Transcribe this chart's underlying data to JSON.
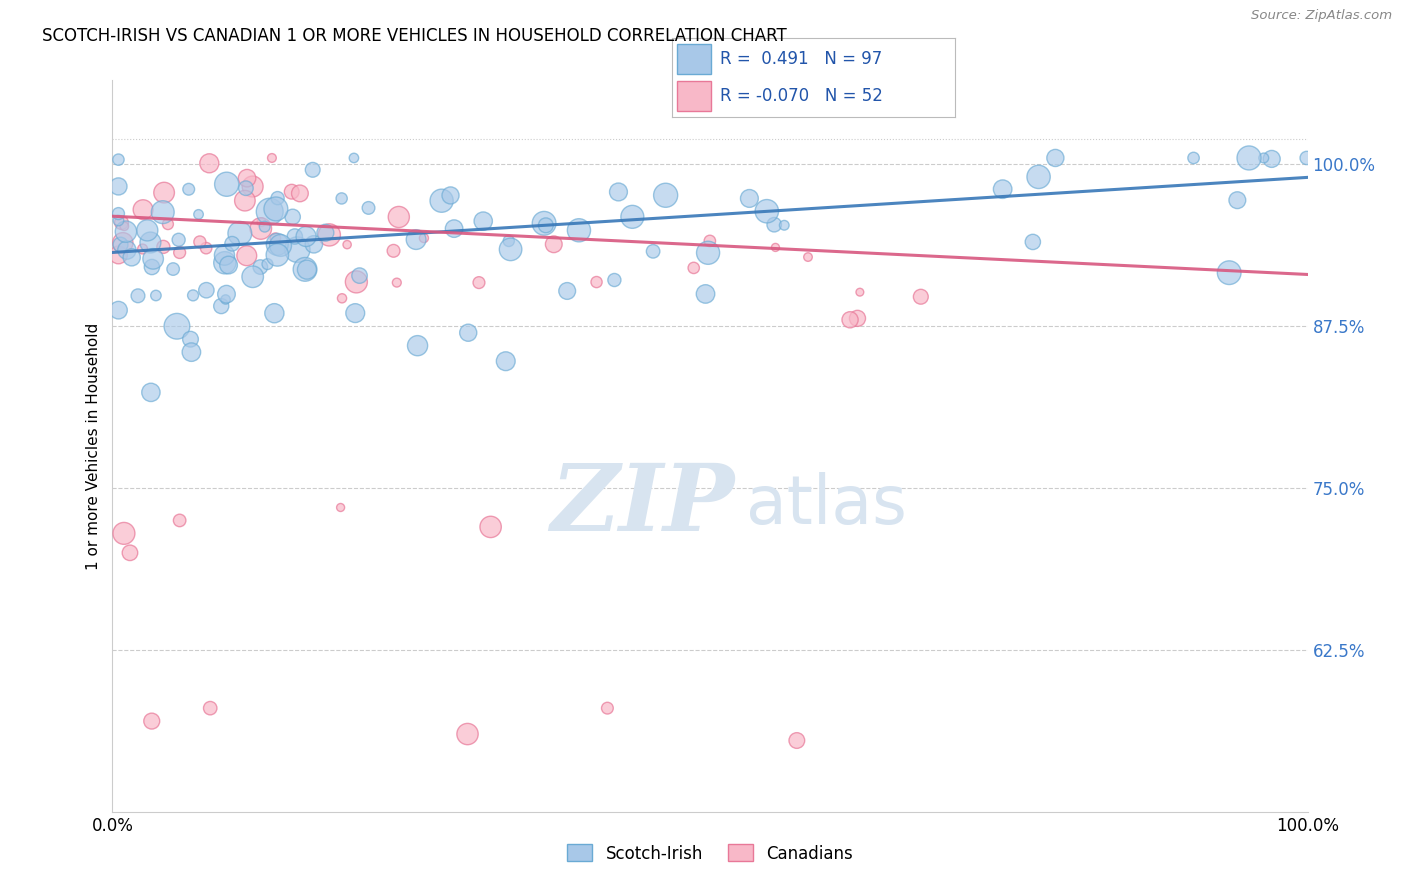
{
  "title": "SCOTCH-IRISH VS CANADIAN 1 OR MORE VEHICLES IN HOUSEHOLD CORRELATION CHART",
  "source": "Source: ZipAtlas.com",
  "ylabel": "1 or more Vehicles in Household",
  "legend_label_blue": "Scotch-Irish",
  "legend_label_pink": "Canadians",
  "R_blue": 0.491,
  "N_blue": 97,
  "R_pink": -0.07,
  "N_pink": 52,
  "blue_color": "#a8c8e8",
  "blue_edge": "#6aaad4",
  "pink_color": "#f8b8c8",
  "pink_edge": "#e87898",
  "trend_blue": "#3878b8",
  "trend_pink": "#d85880",
  "watermark_zip": "ZIP",
  "watermark_atlas": "atlas",
  "watermark_color": "#d8e4f0",
  "ylim_min": 0.5,
  "ylim_max": 1.065,
  "xlim_min": 0.0,
  "xlim_max": 1.0,
  "yticks": [
    0.625,
    0.75,
    0.875,
    1.0
  ],
  "ytick_labels": [
    "62.5%",
    "75.0%",
    "87.5%",
    "100.0%"
  ],
  "grid_color": "#cccccc",
  "top_line_y": 1.02
}
